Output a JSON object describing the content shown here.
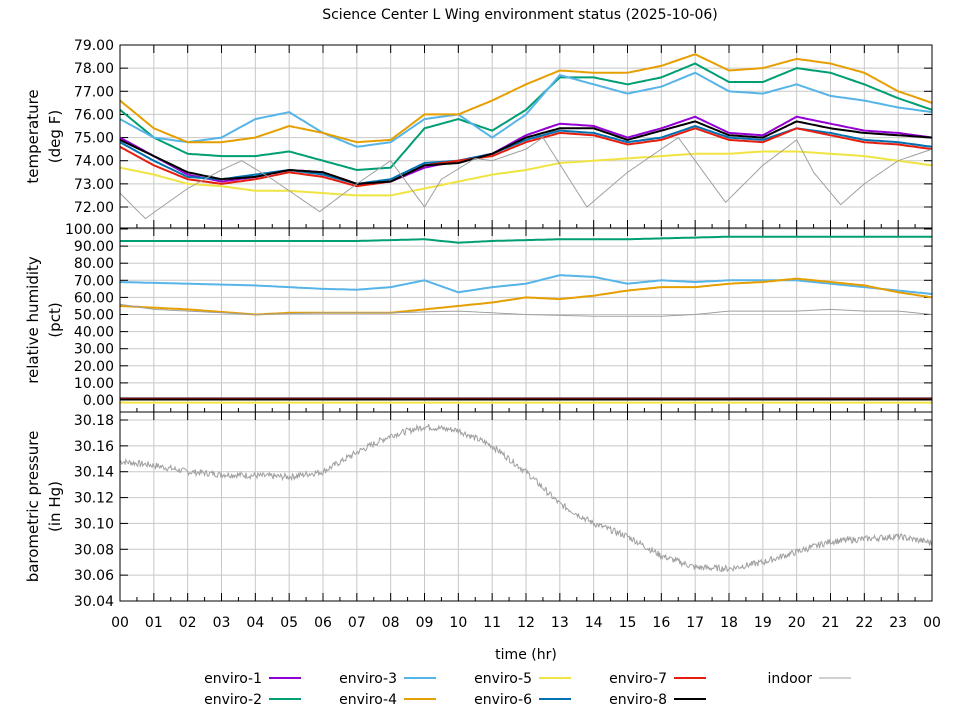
{
  "chart_data": [
    {
      "type": "line",
      "title": "Science Center L Wing environment status (2025-10-06)",
      "ylabel": [
        "temperature",
        "(deg F)"
      ],
      "ylim": [
        71.3,
        79
      ],
      "yticks": [
        72,
        73,
        74,
        75,
        76,
        77,
        78,
        79
      ],
      "ytick_labels": [
        "72.00",
        "73.00",
        "74.00",
        "75.00",
        "76.00",
        "77.00",
        "78.00",
        "79.00"
      ],
      "grid": true,
      "x": [
        0,
        1,
        2,
        3,
        4,
        5,
        6,
        7,
        8,
        9,
        10,
        11,
        12,
        13,
        14,
        15,
        16,
        17,
        18,
        19,
        20,
        21,
        22,
        23,
        24
      ],
      "series": [
        {
          "name": "enviro-1",
          "color": "#9400d3",
          "values": [
            75.0,
            74.2,
            73.4,
            73.1,
            73.3,
            73.6,
            73.5,
            73.0,
            73.1,
            73.7,
            74.0,
            74.3,
            75.1,
            75.6,
            75.5,
            75.0,
            75.4,
            75.9,
            75.2,
            75.1,
            75.9,
            75.6,
            75.3,
            75.2,
            75.0
          ]
        },
        {
          "name": "enviro-2",
          "color": "#009e73",
          "values": [
            76.2,
            75.0,
            74.3,
            74.2,
            74.2,
            74.4,
            74.0,
            73.6,
            73.7,
            75.4,
            75.8,
            75.3,
            76.2,
            77.6,
            77.6,
            77.3,
            77.6,
            78.2,
            77.4,
            77.4,
            78.0,
            77.8,
            77.3,
            76.7,
            76.2
          ]
        },
        {
          "name": "enviro-3",
          "color": "#56b4e9",
          "values": [
            75.8,
            75.0,
            74.8,
            75.0,
            75.8,
            76.1,
            75.2,
            74.6,
            74.8,
            75.8,
            76.0,
            75.0,
            76.0,
            77.7,
            77.3,
            76.9,
            77.2,
            77.8,
            77.0,
            76.9,
            77.3,
            76.8,
            76.6,
            76.3,
            76.1
          ]
        },
        {
          "name": "enviro-4",
          "color": "#e69f00",
          "values": [
            76.6,
            75.4,
            74.8,
            74.8,
            75.0,
            75.5,
            75.2,
            74.8,
            74.9,
            76.0,
            76.0,
            76.6,
            77.3,
            77.9,
            77.8,
            77.8,
            78.1,
            78.6,
            77.9,
            78.0,
            78.4,
            78.2,
            77.8,
            77.0,
            76.5
          ]
        },
        {
          "name": "enviro-5",
          "color": "#f0e442",
          "values": [
            73.7,
            73.4,
            73.0,
            72.9,
            72.7,
            72.7,
            72.6,
            72.5,
            72.5,
            72.8,
            73.1,
            73.4,
            73.6,
            73.9,
            74.0,
            74.1,
            74.2,
            74.3,
            74.3,
            74.4,
            74.4,
            74.3,
            74.2,
            74.0,
            73.8
          ]
        },
        {
          "name": "enviro-6",
          "color": "#0072b2",
          "values": [
            74.8,
            74.0,
            73.3,
            73.2,
            73.4,
            73.6,
            73.4,
            73.0,
            73.2,
            73.9,
            74.0,
            74.3,
            74.9,
            75.3,
            75.2,
            74.8,
            75.0,
            75.5,
            75.0,
            74.9,
            75.4,
            75.2,
            74.9,
            74.8,
            74.6
          ]
        },
        {
          "name": "enviro-7",
          "color": "#e51e10",
          "values": [
            74.6,
            73.8,
            73.2,
            73.0,
            73.2,
            73.5,
            73.3,
            72.9,
            73.1,
            73.8,
            74.0,
            74.2,
            74.8,
            75.2,
            75.1,
            74.7,
            74.9,
            75.4,
            74.9,
            74.8,
            75.4,
            75.1,
            74.8,
            74.7,
            74.5
          ]
        },
        {
          "name": "enviro-8",
          "color": "#000000",
          "values": [
            74.9,
            74.2,
            73.5,
            73.2,
            73.3,
            73.6,
            73.5,
            73.0,
            73.1,
            73.8,
            73.9,
            74.3,
            75.0,
            75.4,
            75.4,
            74.9,
            75.3,
            75.7,
            75.1,
            75.0,
            75.7,
            75.4,
            75.2,
            75.1,
            75.0
          ]
        },
        {
          "name": "indoor",
          "color": "#a0a0a0",
          "x": [
            0,
            0.75,
            2,
            3,
            3.6,
            4.5,
            5.9,
            7,
            8,
            9,
            9.5,
            10.5,
            11,
            12,
            12.5,
            13.8,
            15,
            16.5,
            17.5,
            17.9,
            19,
            20,
            20.5,
            21.3,
            22,
            23,
            24
          ],
          "values": [
            72.6,
            71.5,
            72.8,
            73.6,
            74.0,
            73.2,
            71.8,
            73.0,
            74.0,
            72.0,
            73.2,
            74.1,
            74.0,
            74.5,
            75.0,
            72.0,
            73.5,
            75.0,
            73.0,
            72.2,
            73.8,
            74.9,
            73.5,
            72.1,
            73.0,
            74.0,
            74.5
          ]
        }
      ]
    },
    {
      "type": "line",
      "ylabel": [
        "relative humidity",
        "(pct)"
      ],
      "ylim": [
        -2,
        100
      ],
      "yticks": [
        0,
        10,
        20,
        30,
        40,
        50,
        60,
        70,
        80,
        90,
        100
      ],
      "ytick_labels": [
        "0.00",
        "10.00",
        "20.00",
        "30.00",
        "40.00",
        "50.00",
        "60.00",
        "70.00",
        "80.00",
        "90.00",
        "100.00"
      ],
      "grid": true,
      "x": [
        0,
        1,
        2,
        3,
        4,
        5,
        6,
        7,
        8,
        9,
        10,
        11,
        12,
        13,
        14,
        15,
        16,
        17,
        18,
        19,
        20,
        21,
        22,
        23,
        24
      ],
      "series": [
        {
          "name": "enviro-1",
          "color": "#9400d3",
          "values": [
            0.5,
            0.5,
            0.5,
            0.5,
            0.5,
            0.5,
            0.5,
            0.5,
            0.5,
            0.5,
            0.5,
            0.5,
            0.5,
            0.5,
            0.5,
            0.5,
            0.5,
            0.5,
            0.5,
            0.5,
            0.5,
            0.5,
            0.5,
            0.5,
            0.5
          ]
        },
        {
          "name": "enviro-2",
          "color": "#009e73",
          "values": [
            93,
            93,
            93,
            93,
            93,
            93,
            93,
            93,
            93.5,
            94,
            92,
            93,
            93.5,
            94,
            94,
            94,
            94.5,
            95,
            95.5,
            95.5,
            95.5,
            95.5,
            95.5,
            95.5,
            95.5
          ]
        },
        {
          "name": "enviro-3",
          "color": "#56b4e9",
          "values": [
            69,
            68.5,
            68,
            67.5,
            67,
            66,
            65,
            64.5,
            66,
            70,
            63,
            66,
            68,
            73,
            72,
            68,
            70,
            69,
            70,
            70,
            70,
            68,
            66,
            64,
            62
          ]
        },
        {
          "name": "enviro-4",
          "color": "#e69f00",
          "values": [
            55,
            54,
            53,
            51.5,
            50,
            51,
            51,
            51,
            51,
            53,
            55,
            57,
            60,
            59,
            61,
            64,
            66,
            66,
            68,
            69,
            71,
            69,
            67,
            63,
            60
          ]
        },
        {
          "name": "enviro-6",
          "color": "#0072b2",
          "values": [
            1,
            1,
            1,
            1,
            1,
            1,
            1,
            1,
            1,
            1,
            1,
            1,
            1,
            1,
            1,
            1,
            1,
            1,
            1,
            1,
            1,
            1,
            1,
            1,
            1
          ]
        },
        {
          "name": "enviro-7",
          "color": "#e51e10",
          "values": [
            0.8,
            0.8,
            0.8,
            0.8,
            0.8,
            0.8,
            0.8,
            0.8,
            0.8,
            0.8,
            0.8,
            0.8,
            0.8,
            0.8,
            0.8,
            0.8,
            0.8,
            0.8,
            0.8,
            0.8,
            0.8,
            0.8,
            0.8,
            0.8,
            0.8
          ]
        },
        {
          "name": "enviro-8",
          "color": "#000000",
          "values": [
            0.3,
            0.3,
            0.3,
            0.3,
            0.3,
            0.3,
            0.3,
            0.3,
            0.3,
            0.3,
            0.3,
            0.3,
            0.3,
            0.3,
            0.3,
            0.3,
            0.3,
            0.3,
            0.3,
            0.3,
            0.3,
            0.3,
            0.3,
            0.3,
            0.3
          ]
        },
        {
          "name": "enviro-5",
          "color": "#f0e442",
          "values": [
            -1.5,
            -1.5,
            -1.5,
            -1.5,
            -1.5,
            -1.5,
            -1.5,
            -1.5,
            -1.5,
            -1.5,
            -1.5,
            -1.5,
            -1.5,
            -1.5,
            -1.5,
            -1.5,
            -1.5,
            -1.5,
            -1.5,
            -1.5,
            -1.5,
            -1.5,
            -1.5,
            -1.5,
            -1.5
          ]
        },
        {
          "name": "indoor",
          "color": "#a0a0a0",
          "values": [
            56,
            53,
            52,
            51,
            50,
            50.5,
            51,
            51,
            51,
            51.5,
            52,
            51,
            50,
            49.5,
            49,
            49,
            49,
            50,
            52,
            52,
            52,
            53,
            52,
            52,
            50
          ]
        }
      ]
    },
    {
      "type": "line",
      "ylabel": [
        "barometric pressure",
        "(in Hg)"
      ],
      "ylim": [
        30.04,
        30.18
      ],
      "yticks": [
        30.04,
        30.06,
        30.08,
        30.1,
        30.12,
        30.14,
        30.16,
        30.18
      ],
      "ytick_labels": [
        "30.04",
        "30.06",
        "30.08",
        "30.10",
        "30.12",
        "30.14",
        "30.16",
        "30.18"
      ],
      "grid": true,
      "xlabel": "time (hr)",
      "xlim": [
        0,
        24
      ],
      "xtick_labels": [
        "00",
        "01",
        "02",
        "03",
        "04",
        "05",
        "06",
        "07",
        "08",
        "09",
        "10",
        "11",
        "12",
        "13",
        "14",
        "15",
        "16",
        "17",
        "18",
        "19",
        "20",
        "21",
        "22",
        "23",
        "00"
      ],
      "x": [
        0,
        1,
        2,
        3,
        4,
        5,
        6,
        7,
        8,
        9,
        10,
        11,
        12,
        13,
        14,
        15,
        16,
        17,
        18,
        19,
        20,
        21,
        22,
        23,
        24
      ],
      "series": [
        {
          "name": "indoor",
          "color": "#a0a0a0",
          "values": [
            30.148,
            30.145,
            30.14,
            30.138,
            30.137,
            30.136,
            30.14,
            30.155,
            30.168,
            30.175,
            30.172,
            30.16,
            30.14,
            30.115,
            30.1,
            30.09,
            30.075,
            30.066,
            30.065,
            30.07,
            30.078,
            30.086,
            30.088,
            30.09,
            30.085
          ]
        }
      ]
    }
  ],
  "legend": [
    {
      "name": "enviro-1",
      "color": "#9400d3"
    },
    {
      "name": "enviro-2",
      "color": "#009e73"
    },
    {
      "name": "enviro-3",
      "color": "#56b4e9"
    },
    {
      "name": "enviro-4",
      "color": "#e69f00"
    },
    {
      "name": "enviro-5",
      "color": "#f0e442"
    },
    {
      "name": "enviro-6",
      "color": "#0072b2"
    },
    {
      "name": "enviro-7",
      "color": "#e51e10"
    },
    {
      "name": "enviro-8",
      "color": "#000000"
    },
    {
      "name": "indoor",
      "color": "#a0a0a0"
    }
  ]
}
